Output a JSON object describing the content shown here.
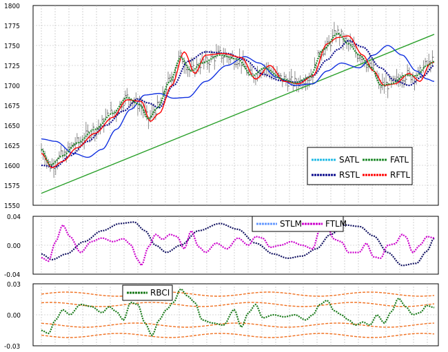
{
  "chart_data": [
    {
      "type": "line",
      "panel": "price",
      "ylim": [
        1550,
        1800
      ],
      "y_ticks": [
        "1800",
        "1775",
        "1750",
        "1725",
        "1700",
        "1675",
        "1650",
        "1625",
        "1600",
        "1575",
        "1550"
      ],
      "grid": true,
      "legend": {
        "placement": "bottom-right",
        "labels": [
          "SATL",
          "FATL",
          "RSTL",
          "RFTL"
        ]
      },
      "colors": {
        "bars": "#8a8a8a",
        "SATL": "#22bbe6",
        "FATL": "#1f8a2a",
        "RSTL": "#0b0b8c",
        "RFTL": "#ff0000",
        "SLOW": "#1030e0",
        "TREND": "#2aa02a"
      },
      "series": [
        {
          "name": "FATL",
          "knots": [
            [
              0,
              1620
            ],
            [
              5,
              1600
            ],
            [
              12,
              1612
            ],
            [
              20,
              1628
            ],
            [
              30,
              1645
            ],
            [
              40,
              1665
            ],
            [
              48,
              1685
            ],
            [
              55,
              1676
            ],
            [
              60,
              1658
            ],
            [
              65,
              1672
            ],
            [
              72,
              1705
            ],
            [
              78,
              1735
            ],
            [
              84,
              1718
            ],
            [
              90,
              1728
            ],
            [
              100,
              1738
            ],
            [
              110,
              1733
            ],
            [
              118,
              1712
            ],
            [
              125,
              1722
            ],
            [
              135,
              1708
            ],
            [
              142,
              1703
            ],
            [
              150,
              1710
            ],
            [
              158,
              1745
            ],
            [
              166,
              1765
            ],
            [
              172,
              1752
            ],
            [
              178,
              1738
            ],
            [
              185,
              1722
            ],
            [
              190,
              1700
            ],
            [
              196,
              1702
            ],
            [
              204,
              1713
            ],
            [
              210,
              1712
            ],
            [
              216,
              1725
            ],
            [
              220,
              1730
            ]
          ]
        },
        {
          "name": "RFTL",
          "knots": [
            [
              0,
              1615
            ],
            [
              6,
              1597
            ],
            [
              12,
              1605
            ],
            [
              20,
              1622
            ],
            [
              30,
              1640
            ],
            [
              40,
              1660
            ],
            [
              48,
              1682
            ],
            [
              56,
              1680
            ],
            [
              61,
              1655
            ],
            [
              66,
              1665
            ],
            [
              73,
              1700
            ],
            [
              80,
              1742
            ],
            [
              86,
              1715
            ],
            [
              92,
              1738
            ],
            [
              102,
              1740
            ],
            [
              112,
              1735
            ],
            [
              120,
              1708
            ],
            [
              128,
              1725
            ],
            [
              136,
              1705
            ],
            [
              144,
              1702
            ],
            [
              152,
              1712
            ],
            [
              160,
              1752
            ],
            [
              166,
              1760
            ],
            [
              172,
              1762
            ],
            [
              180,
              1738
            ],
            [
              186,
              1718
            ],
            [
              192,
              1700
            ],
            [
              198,
              1702
            ],
            [
              206,
              1715
            ],
            [
              212,
              1705
            ],
            [
              218,
              1728
            ],
            [
              220,
              1729
            ]
          ]
        },
        {
          "name": "RSTL",
          "knots": [
            [
              0,
              1600
            ],
            [
              8,
              1598
            ],
            [
              16,
              1612
            ],
            [
              26,
              1630
            ],
            [
              36,
              1650
            ],
            [
              46,
              1668
            ],
            [
              54,
              1683
            ],
            [
              60,
              1678
            ],
            [
              66,
              1672
            ],
            [
              74,
              1700
            ],
            [
              82,
              1730
            ],
            [
              92,
              1742
            ],
            [
              104,
              1740
            ],
            [
              114,
              1732
            ],
            [
              124,
              1714
            ],
            [
              134,
              1706
            ],
            [
              144,
              1704
            ],
            [
              152,
              1712
            ],
            [
              160,
              1732
            ],
            [
              166,
              1745
            ],
            [
              172,
              1756
            ],
            [
              180,
              1748
            ],
            [
              190,
              1722
            ],
            [
              198,
              1706
            ],
            [
              206,
              1700
            ],
            [
              214,
              1712
            ],
            [
              220,
              1725
            ]
          ]
        },
        {
          "name": "SLOW",
          "knots": [
            [
              0,
              1633
            ],
            [
              8,
              1630
            ],
            [
              18,
              1615
            ],
            [
              26,
              1610
            ],
            [
              34,
              1620
            ],
            [
              42,
              1645
            ],
            [
              50,
              1670
            ],
            [
              58,
              1688
            ],
            [
              66,
              1690
            ],
            [
              74,
              1684
            ],
            [
              82,
              1685
            ],
            [
              92,
              1705
            ],
            [
              104,
              1725
            ],
            [
              114,
              1736
            ],
            [
              122,
              1728
            ],
            [
              132,
              1710
            ],
            [
              142,
              1700
            ],
            [
              152,
              1702
            ],
            [
              160,
              1718
            ],
            [
              168,
              1728
            ],
            [
              178,
              1722
            ],
            [
              186,
              1738
            ],
            [
              194,
              1750
            ],
            [
              202,
              1738
            ],
            [
              210,
              1718
            ],
            [
              216,
              1708
            ],
            [
              220,
              1705
            ]
          ]
        },
        {
          "name": "TREND",
          "knots": [
            [
              0,
              1565
            ],
            [
              220,
              1764
            ]
          ]
        }
      ]
    },
    {
      "type": "line",
      "panel": "STLM/FTLM",
      "ylim": [
        -0.04,
        0.04
      ],
      "y_ticks": [
        "0.04",
        "0.00",
        "-0.04"
      ],
      "legend": {
        "placement": "top-right",
        "labels": [
          "STLM",
          "FTLM"
        ]
      },
      "colors": {
        "STLM": "#6699ff",
        "FTLM": "#cc00cc",
        "SLOW": "#101060"
      },
      "series": [
        {
          "name": "FTLM",
          "knots": [
            [
              0,
              -0.017
            ],
            [
              4,
              -0.022
            ],
            [
              8,
              0.005
            ],
            [
              12,
              0.028
            ],
            [
              16,
              0.012
            ],
            [
              22,
              -0.01
            ],
            [
              28,
              0.005
            ],
            [
              34,
              0.01
            ],
            [
              40,
              0.005
            ],
            [
              46,
              0.009
            ],
            [
              50,
              0.001
            ],
            [
              54,
              -0.02
            ],
            [
              56,
              -0.028
            ],
            [
              60,
              -0.002
            ],
            [
              64,
              0.015
            ],
            [
              68,
              0.008
            ],
            [
              72,
              0.015
            ],
            [
              76,
              0.012
            ],
            [
              80,
              -0.005
            ],
            [
              84,
              0.02
            ],
            [
              88,
              -0.002
            ],
            [
              92,
              -0.01
            ],
            [
              98,
              0.003
            ],
            [
              104,
              -0.005
            ],
            [
              110,
              0.01
            ],
            [
              116,
              0.0
            ],
            [
              120,
              0.012
            ],
            [
              124,
              0.01
            ],
            [
              128,
              -0.003
            ],
            [
              134,
              0.0
            ],
            [
              140,
              0.005
            ],
            [
              146,
              0.0
            ],
            [
              152,
              -0.005
            ],
            [
              156,
              0.022
            ],
            [
              160,
              0.026
            ],
            [
              164,
              0.008
            ],
            [
              168,
              0.005
            ],
            [
              172,
              -0.01
            ],
            [
              178,
              -0.01
            ],
            [
              182,
              0.003
            ],
            [
              186,
              -0.016
            ],
            [
              190,
              -0.018
            ],
            [
              194,
              0.0
            ],
            [
              198,
              0.002
            ],
            [
              202,
              0.015
            ],
            [
              204,
              0.012
            ],
            [
              208,
              -0.01
            ],
            [
              212,
              0.0
            ],
            [
              216,
              0.012
            ],
            [
              220,
              0.01
            ]
          ]
        },
        {
          "name": "SLOW",
          "knots": [
            [
              0,
              -0.012
            ],
            [
              6,
              -0.02
            ],
            [
              14,
              -0.012
            ],
            [
              24,
              0.005
            ],
            [
              34,
              0.02
            ],
            [
              44,
              0.03
            ],
            [
              52,
              0.032
            ],
            [
              58,
              0.02
            ],
            [
              64,
              0.0
            ],
            [
              70,
              -0.01
            ],
            [
              78,
              0.0
            ],
            [
              88,
              0.02
            ],
            [
              100,
              0.03
            ],
            [
              110,
              0.022
            ],
            [
              120,
              0.003
            ],
            [
              130,
              -0.012
            ],
            [
              138,
              -0.018
            ],
            [
              146,
              -0.015
            ],
            [
              154,
              -0.005
            ],
            [
              162,
              0.015
            ],
            [
              170,
              0.028
            ],
            [
              178,
              0.026
            ],
            [
              186,
              0.013
            ],
            [
              194,
              -0.01
            ],
            [
              202,
              -0.028
            ],
            [
              210,
              -0.025
            ],
            [
              216,
              -0.008
            ],
            [
              220,
              0.01
            ]
          ]
        }
      ]
    },
    {
      "type": "line",
      "panel": "RBCI",
      "ylim": [
        -0.03,
        0.03
      ],
      "y_ticks": [
        "0.03",
        "0.00",
        "-0.03"
      ],
      "legend": {
        "placement": "top-left",
        "labels": [
          "RBCI"
        ]
      },
      "colors": {
        "RBCI": "#1a7a1a",
        "BANDS": "#f07020"
      },
      "series": [
        {
          "name": "RBCI",
          "knots": [
            [
              0,
              -0.015
            ],
            [
              4,
              -0.018
            ],
            [
              8,
              -0.005
            ],
            [
              12,
              0.005
            ],
            [
              16,
              0.0
            ],
            [
              22,
              0.01
            ],
            [
              28,
              0.008
            ],
            [
              34,
              0.002
            ],
            [
              38,
              0.008
            ],
            [
              42,
              0.003
            ],
            [
              46,
              -0.005
            ],
            [
              50,
              0.012
            ],
            [
              54,
              0.01
            ],
            [
              58,
              -0.008
            ],
            [
              62,
              -0.02
            ],
            [
              66,
              -0.005
            ],
            [
              70,
              0.005
            ],
            [
              74,
              0.012
            ],
            [
              78,
              0.025
            ],
            [
              82,
              0.018
            ],
            [
              86,
              0.012
            ],
            [
              90,
              -0.005
            ],
            [
              96,
              -0.008
            ],
            [
              102,
              -0.01
            ],
            [
              108,
              0.005
            ],
            [
              112,
              -0.012
            ],
            [
              116,
              0.002
            ],
            [
              120,
              0.01
            ],
            [
              124,
              -0.003
            ],
            [
              130,
              0.0
            ],
            [
              136,
              -0.002
            ],
            [
              142,
              0.0
            ],
            [
              148,
              -0.005
            ],
            [
              152,
              0.0
            ],
            [
              156,
              0.01
            ],
            [
              160,
              0.014
            ],
            [
              164,
              0.004
            ],
            [
              168,
              0.0
            ],
            [
              172,
              -0.005
            ],
            [
              176,
              -0.01
            ],
            [
              180,
              -0.007
            ],
            [
              184,
              -0.01
            ],
            [
              188,
              0.0
            ],
            [
              192,
              -0.008
            ],
            [
              196,
              0.003
            ],
            [
              200,
              0.016
            ],
            [
              204,
              0.008
            ],
            [
              208,
              0.0
            ],
            [
              212,
              0.002
            ],
            [
              216,
              0.009
            ],
            [
              220,
              0.007
            ]
          ]
        },
        {
          "name": "BANDS",
          "offsets": [
            0.02,
            0.01,
            -0.01,
            -0.02
          ]
        }
      ]
    }
  ]
}
